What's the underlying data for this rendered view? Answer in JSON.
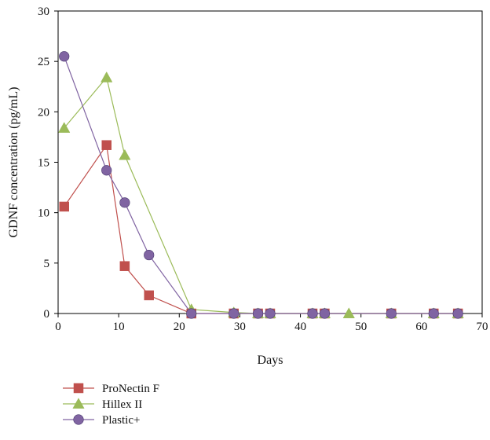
{
  "chart_data": {
    "type": "line",
    "title": "",
    "xlabel": "Days",
    "ylabel": "GDNF concentration (pg/mL)",
    "xlim": [
      0,
      70
    ],
    "ylim": [
      0,
      30
    ],
    "xticks": [
      0,
      10,
      20,
      30,
      40,
      50,
      60,
      70
    ],
    "yticks": [
      0,
      5,
      10,
      15,
      20,
      25,
      30
    ],
    "grid": false,
    "legend_position": "bottom-left, below plot",
    "series": [
      {
        "name": "ProNectin F",
        "marker": "square",
        "color": "#c0504d",
        "x": [
          1,
          8,
          11,
          15,
          22,
          29,
          33,
          35,
          42,
          44,
          55,
          62,
          66
        ],
        "y": [
          10.6,
          16.7,
          4.7,
          1.8,
          0,
          0,
          0,
          0,
          0,
          0,
          0,
          0,
          0
        ]
      },
      {
        "name": "Hillex II",
        "marker": "triangle",
        "color": "#9bbb59",
        "x": [
          1,
          8,
          11,
          22,
          29,
          33,
          35,
          42,
          44,
          48,
          55,
          62,
          66
        ],
        "y": [
          18.4,
          23.4,
          15.7,
          0.4,
          0.1,
          0,
          0,
          0,
          0,
          0,
          0,
          0,
          0
        ]
      },
      {
        "name": "Plastic+",
        "marker": "circle",
        "color": "#8064a2",
        "x": [
          1,
          8,
          11,
          15,
          22,
          29,
          33,
          35,
          42,
          44,
          55,
          62,
          66
        ],
        "y": [
          25.5,
          14.2,
          11.0,
          5.8,
          0,
          0,
          0,
          0,
          0,
          0,
          0,
          0,
          0
        ]
      }
    ]
  }
}
